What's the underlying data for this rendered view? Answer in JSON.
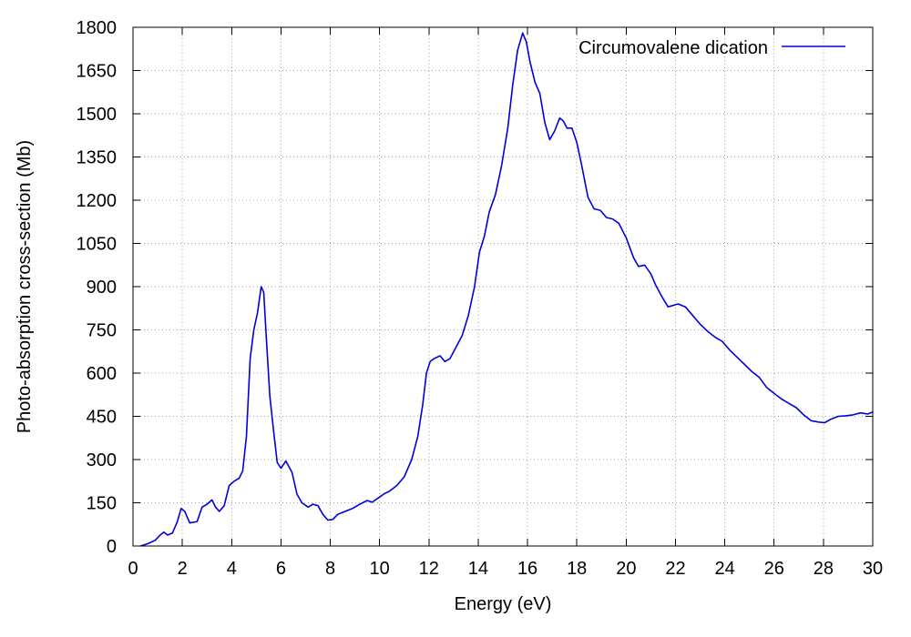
{
  "chart_data": {
    "type": "line",
    "title": "",
    "xlabel": "Energy (eV)",
    "ylabel": "Photo-absorption cross-section (Mb)",
    "xlim": [
      0,
      30
    ],
    "ylim": [
      0,
      1800
    ],
    "xticks": [
      0,
      2,
      4,
      6,
      8,
      10,
      12,
      14,
      16,
      18,
      20,
      22,
      24,
      26,
      28,
      30
    ],
    "xtick_labels": [
      "0",
      "2",
      "4",
      "6",
      "8",
      "10",
      "12",
      "14",
      "16",
      "18",
      "20",
      "22",
      "24",
      "26",
      "28",
      "30"
    ],
    "yticks": [
      0,
      150,
      300,
      450,
      600,
      750,
      900,
      1050,
      1200,
      1350,
      1500,
      1650,
      1800
    ],
    "ytick_labels": [
      "0",
      "150",
      "300",
      "450",
      "600",
      "750",
      "900",
      "1050",
      "1200",
      "1350",
      "1500",
      "1650",
      "1800"
    ],
    "grid": true,
    "legend_position": "top-right",
    "series": [
      {
        "name": "Circumovalene dication",
        "color": "#0000dd",
        "x": [
          0.3,
          0.6,
          0.9,
          1.1,
          1.25,
          1.4,
          1.6,
          1.8,
          1.95,
          2.1,
          2.3,
          2.6,
          2.8,
          3.0,
          3.2,
          3.35,
          3.5,
          3.7,
          3.9,
          4.1,
          4.3,
          4.45,
          4.6,
          4.75,
          4.9,
          5.05,
          5.2,
          5.3,
          5.4,
          5.55,
          5.7,
          5.85,
          6.0,
          6.2,
          6.45,
          6.65,
          6.85,
          7.1,
          7.3,
          7.5,
          7.7,
          7.9,
          8.1,
          8.3,
          8.6,
          8.9,
          9.2,
          9.5,
          9.7,
          10.0,
          10.2,
          10.4,
          10.7,
          11.0,
          11.3,
          11.55,
          11.75,
          11.9,
          12.05,
          12.2,
          12.45,
          12.65,
          12.85,
          13.1,
          13.35,
          13.6,
          13.85,
          14.05,
          14.25,
          14.45,
          14.7,
          14.95,
          15.2,
          15.4,
          15.6,
          15.8,
          15.95,
          16.1,
          16.3,
          16.5,
          16.7,
          16.9,
          17.1,
          17.3,
          17.45,
          17.6,
          17.8,
          18.0,
          18.2,
          18.45,
          18.7,
          18.95,
          19.2,
          19.45,
          19.7,
          20.0,
          20.3,
          20.5,
          20.75,
          21.0,
          21.2,
          21.45,
          21.7,
          21.9,
          22.1,
          22.4,
          22.7,
          23.0,
          23.3,
          23.6,
          23.9,
          24.2,
          24.5,
          24.8,
          25.1,
          25.4,
          25.7,
          26.0,
          26.3,
          26.6,
          26.9,
          27.2,
          27.5,
          27.8,
          28.05,
          28.3,
          28.6,
          28.9,
          29.2,
          29.5,
          29.8,
          30.0
        ],
        "y": [
          0,
          8,
          20,
          38,
          48,
          38,
          45,
          85,
          130,
          120,
          80,
          85,
          135,
          145,
          160,
          135,
          120,
          140,
          210,
          225,
          235,
          260,
          380,
          650,
          750,
          810,
          900,
          880,
          730,
          520,
          400,
          290,
          270,
          295,
          255,
          180,
          150,
          135,
          145,
          140,
          110,
          90,
          92,
          110,
          120,
          130,
          145,
          158,
          152,
          170,
          182,
          190,
          210,
          240,
          300,
          380,
          490,
          600,
          640,
          650,
          660,
          640,
          650,
          690,
          730,
          800,
          900,
          1020,
          1075,
          1160,
          1220,
          1320,
          1450,
          1600,
          1720,
          1780,
          1750,
          1680,
          1610,
          1570,
          1470,
          1410,
          1440,
          1485,
          1475,
          1450,
          1450,
          1400,
          1320,
          1210,
          1170,
          1165,
          1140,
          1135,
          1120,
          1070,
          1000,
          970,
          975,
          945,
          905,
          865,
          830,
          835,
          840,
          830,
          800,
          770,
          745,
          725,
          710,
          680,
          655,
          630,
          605,
          585,
          550,
          530,
          510,
          495,
          480,
          455,
          435,
          430,
          428,
          440,
          450,
          452,
          455,
          462,
          458,
          465
        ]
      }
    ]
  }
}
